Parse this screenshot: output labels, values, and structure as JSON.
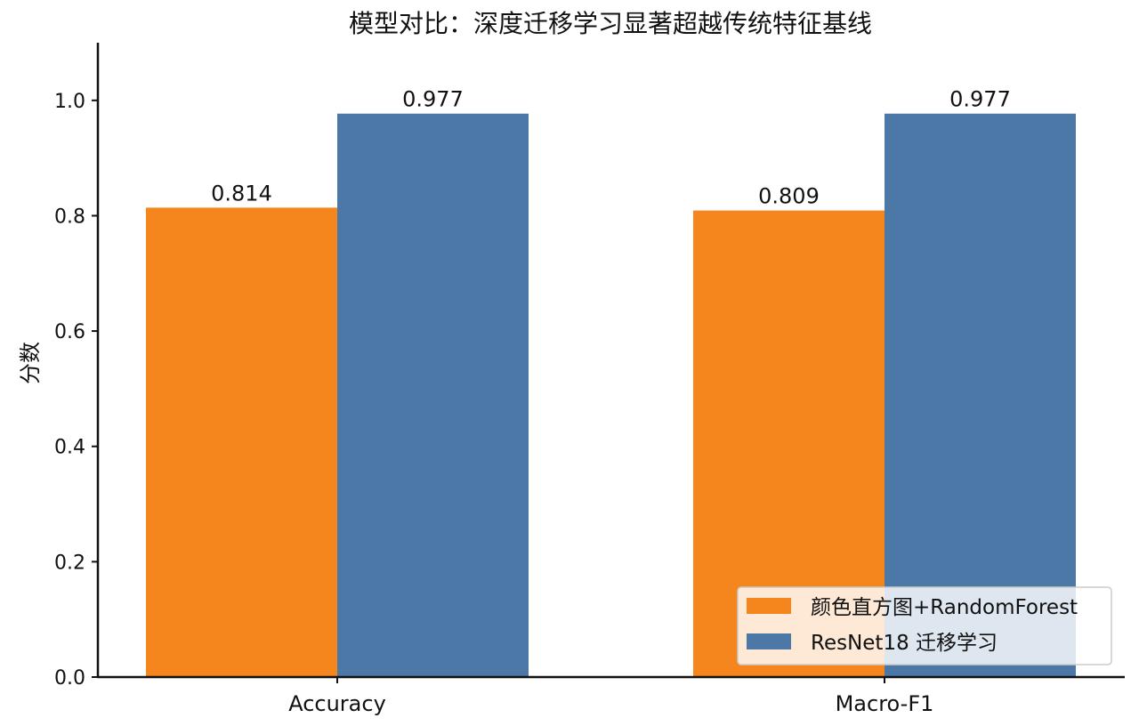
{
  "chart_data": {
    "type": "bar",
    "title": "模型对比：深度迁移学习显著超越传统特征基线",
    "xlabel": "",
    "ylabel": "分数",
    "categories": [
      "Accuracy",
      "Macro-F1"
    ],
    "series": [
      {
        "name": "颜色直方图+RandomForest",
        "values": [
          0.814,
          0.809
        ],
        "color": "#f5851d"
      },
      {
        "name": "ResNet18 迁移学习",
        "values": [
          0.977,
          0.977
        ],
        "color": "#4c78a8"
      }
    ],
    "value_labels": [
      [
        "0.814",
        "0.809"
      ],
      [
        "0.977",
        "0.977"
      ]
    ],
    "ylim": [
      0,
      1.1
    ],
    "yticks": [
      0.0,
      0.2,
      0.4,
      0.6,
      0.8,
      1.0
    ],
    "ytick_labels": [
      "0.0",
      "0.2",
      "0.4",
      "0.6",
      "0.8",
      "1.0"
    ],
    "grid": false,
    "legend_position": "lower-right"
  }
}
